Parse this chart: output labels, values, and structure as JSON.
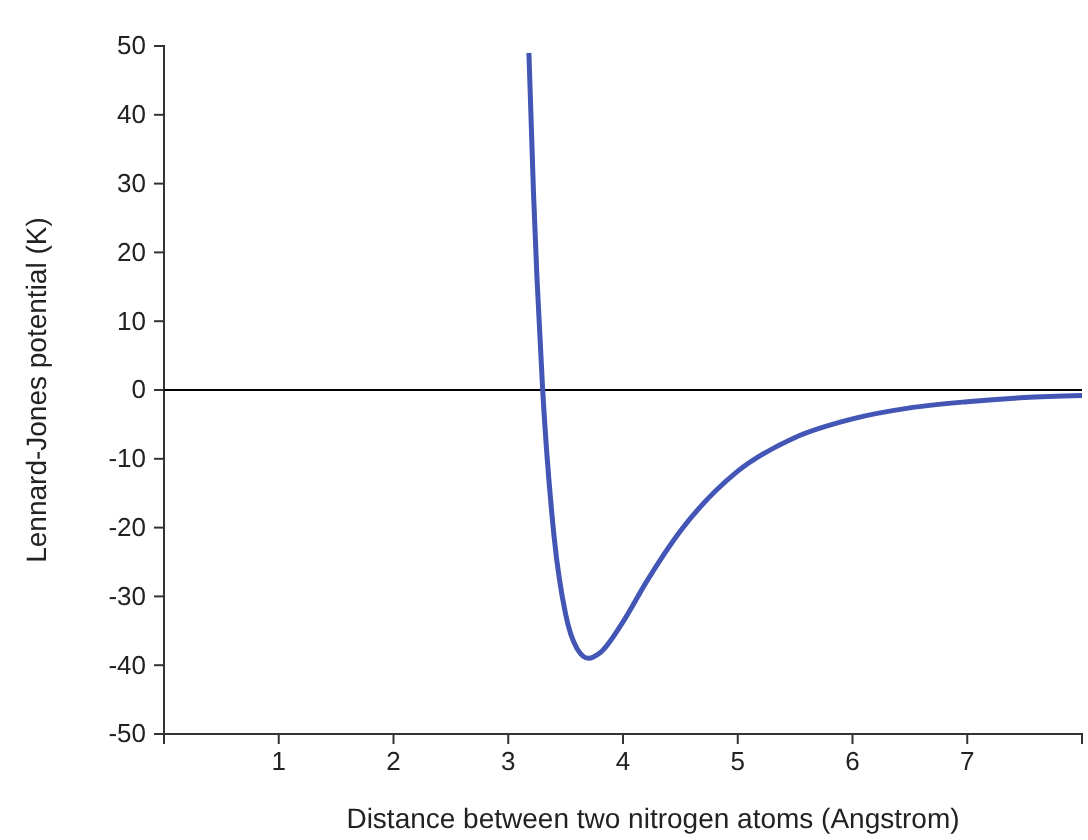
{
  "chart_data": {
    "type": "line",
    "xlabel": "Distance between two nitrogen atoms (Angstrom)",
    "ylabel": "Lennard-Jones potential (K)",
    "xlim": [
      0,
      8
    ],
    "ylim": [
      -50,
      50
    ],
    "xticks": [
      1,
      2,
      3,
      4,
      5,
      6,
      7
    ],
    "yticks": [
      -50,
      -40,
      -30,
      -20,
      -10,
      0,
      10,
      20,
      30,
      40,
      50
    ],
    "grid": false,
    "marker": "none",
    "line_style": "solid",
    "ref_lines": [
      {
        "axis": "y",
        "value": 0,
        "color": "#000000"
      }
    ],
    "series": [
      {
        "color": "#4355b5",
        "x": [
          3.18,
          3.22,
          3.25,
          3.3,
          3.4,
          3.5,
          3.6,
          3.7,
          3.8,
          4.0,
          4.2,
          4.5,
          5.0,
          5.5,
          6.0,
          6.5,
          7.0,
          7.5,
          8.0
        ],
        "values": [
          49,
          28.7,
          16.4,
          0,
          -21.4,
          -32.6,
          -37.6,
          -39,
          -38.2,
          -33.7,
          -28,
          -20.5,
          -11.8,
          -6.9,
          -4.2,
          -2.6,
          -1.7,
          -1.1,
          -0.8
        ]
      }
    ]
  }
}
